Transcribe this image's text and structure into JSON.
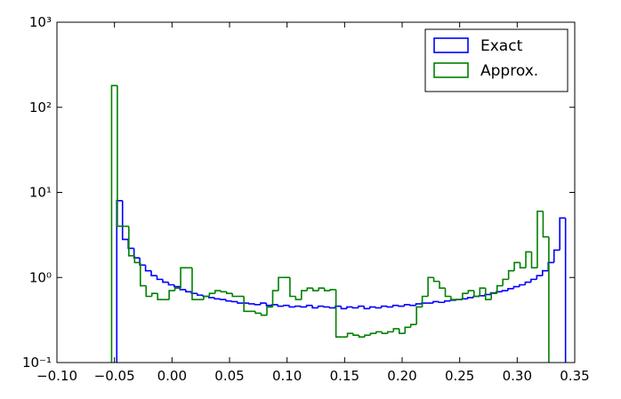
{
  "chart_data": {
    "type": "histogram",
    "log_y": true,
    "grid": false,
    "legend": "upper right",
    "xlim": [
      -0.1,
      0.35
    ],
    "ylim": [
      0.1,
      1000
    ],
    "xticks": [
      {
        "value": -0.1,
        "label": "−0.10"
      },
      {
        "value": -0.05,
        "label": "−0.05"
      },
      {
        "value": 0,
        "label": "0.00"
      },
      {
        "value": 0.05,
        "label": "0.05"
      },
      {
        "value": 0.1,
        "label": "0.10"
      },
      {
        "value": 0.15,
        "label": "0.15"
      },
      {
        "value": 0.2,
        "label": "0.20"
      },
      {
        "value": 0.25,
        "label": "0.25"
      },
      {
        "value": 0.3,
        "label": "0.30"
      },
      {
        "value": 0.35,
        "label": "0.35"
      }
    ],
    "yticks": [
      {
        "value": 0.1,
        "label": "10⁻¹"
      },
      {
        "value": 1,
        "label": "10⁰"
      },
      {
        "value": 10,
        "label": "10¹"
      },
      {
        "value": 100,
        "label": "10²"
      },
      {
        "value": 1000,
        "label": "10³"
      }
    ],
    "series": [
      {
        "name": "Exact",
        "color": "#0000ff",
        "bins": [
          -0.048,
          -0.043,
          -0.038,
          -0.033,
          -0.028,
          -0.023,
          -0.018,
          -0.013,
          -0.008,
          -0.003,
          0.002,
          0.007,
          0.012,
          0.017,
          0.022,
          0.027,
          0.032,
          0.037,
          0.042,
          0.047,
          0.052,
          0.057,
          0.062,
          0.067,
          0.072,
          0.077,
          0.082,
          0.087,
          0.092,
          0.097,
          0.102,
          0.107,
          0.112,
          0.117,
          0.122,
          0.127,
          0.132,
          0.137,
          0.142,
          0.147,
          0.152,
          0.157,
          0.162,
          0.167,
          0.172,
          0.177,
          0.182,
          0.187,
          0.192,
          0.197,
          0.202,
          0.207,
          0.212,
          0.217,
          0.222,
          0.227,
          0.232,
          0.237,
          0.242,
          0.247,
          0.252,
          0.257,
          0.262,
          0.267,
          0.272,
          0.277,
          0.282,
          0.287,
          0.292,
          0.297,
          0.302,
          0.307,
          0.312,
          0.317,
          0.322,
          0.327,
          0.332,
          0.337,
          0.342
        ],
        "values": [
          8,
          2.8,
          2.2,
          1.7,
          1.4,
          1.2,
          1.05,
          0.95,
          0.88,
          0.82,
          0.78,
          0.72,
          0.68,
          0.65,
          0.62,
          0.6,
          0.58,
          0.56,
          0.55,
          0.53,
          0.52,
          0.5,
          0.5,
          0.49,
          0.48,
          0.5,
          0.47,
          0.48,
          0.46,
          0.47,
          0.45,
          0.46,
          0.45,
          0.47,
          0.44,
          0.46,
          0.45,
          0.44,
          0.46,
          0.43,
          0.45,
          0.44,
          0.46,
          0.43,
          0.45,
          0.44,
          0.46,
          0.45,
          0.47,
          0.46,
          0.48,
          0.47,
          0.49,
          0.5,
          0.5,
          0.52,
          0.51,
          0.53,
          0.54,
          0.55,
          0.56,
          0.58,
          0.6,
          0.61,
          0.63,
          0.66,
          0.68,
          0.7,
          0.74,
          0.78,
          0.82,
          0.88,
          0.95,
          1.05,
          1.2,
          1.5,
          2.1,
          5
        ]
      },
      {
        "name": "Approx.",
        "color": "#008000",
        "bins": [
          -0.0525,
          -0.0475,
          -0.0425,
          -0.0375,
          -0.0325,
          -0.0275,
          -0.0225,
          -0.0175,
          -0.0125,
          -0.0075,
          -0.0025,
          0.0025,
          0.0075,
          0.0125,
          0.0175,
          0.0225,
          0.0275,
          0.0325,
          0.0375,
          0.0425,
          0.0475,
          0.0525,
          0.0575,
          0.0625,
          0.0675,
          0.0725,
          0.0775,
          0.0825,
          0.0875,
          0.0925,
          0.0975,
          0.1025,
          0.1075,
          0.1125,
          0.1175,
          0.1225,
          0.1275,
          0.1325,
          0.1375,
          0.1425,
          0.1475,
          0.1525,
          0.1575,
          0.1625,
          0.1675,
          0.1725,
          0.1775,
          0.1825,
          0.1875,
          0.1925,
          0.1975,
          0.2025,
          0.2075,
          0.2125,
          0.2175,
          0.2225,
          0.2275,
          0.2325,
          0.2375,
          0.2425,
          0.2475,
          0.2525,
          0.2575,
          0.2625,
          0.2675,
          0.2725,
          0.2775,
          0.2825,
          0.2875,
          0.2925,
          0.2975,
          0.3025,
          0.3075,
          0.3125,
          0.3175,
          0.3225,
          0.3275
        ],
        "values": [
          180,
          4,
          4,
          1.8,
          1.5,
          0.8,
          0.6,
          0.65,
          0.55,
          0.55,
          0.7,
          0.75,
          1.3,
          1.3,
          0.55,
          0.55,
          0.6,
          0.65,
          0.7,
          0.68,
          0.65,
          0.6,
          0.6,
          0.4,
          0.4,
          0.38,
          0.36,
          0.45,
          0.7,
          1,
          1,
          0.6,
          0.55,
          0.7,
          0.75,
          0.7,
          0.75,
          0.7,
          0.72,
          0.2,
          0.2,
          0.22,
          0.21,
          0.2,
          0.21,
          0.22,
          0.23,
          0.22,
          0.23,
          0.25,
          0.22,
          0.26,
          0.28,
          0.45,
          0.6,
          1,
          0.9,
          0.75,
          0.6,
          0.55,
          0.55,
          0.65,
          0.7,
          0.6,
          0.75,
          0.55,
          0.65,
          0.8,
          0.95,
          1.2,
          1.5,
          1.3,
          2,
          1.3,
          6,
          3
        ]
      }
    ]
  }
}
